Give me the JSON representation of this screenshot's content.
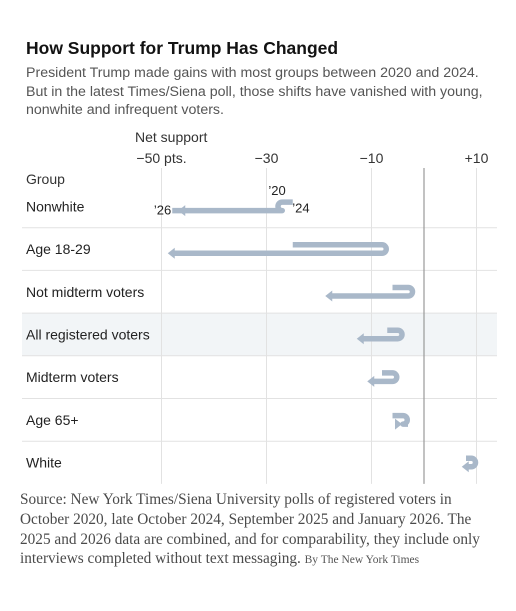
{
  "title": "How Support for Trump Has Changed",
  "subtitle": "President Trump made gains with most groups between 2020 and 2024. But in the latest Times/Siena poll, those shifts have vanished with young, nonwhite and infrequent voters.",
  "source": "Source: New York Times/Siena University polls of registered voters in October 2020, late October 2024, September 2025 and January 2026. The 2025 and 2026 data are combined, and for comparability, they include only interviews completed without text messaging.",
  "byline": "By The New York Times",
  "colors": {
    "arrow": "#a9b8c9",
    "highlight_row": "#f2f5f7",
    "grid": "#e2e2e2",
    "zero_line": "#999999"
  },
  "chart_data": {
    "type": "arrow",
    "xlabel": "Net support",
    "xlim": [
      -57,
      14
    ],
    "x_ticks": [
      -50,
      -30,
      -10,
      10
    ],
    "x_tick_labels": [
      "−50 pts.",
      "−30",
      "−10",
      "+10"
    ],
    "row_header": "Group",
    "series_labels": [
      "’20",
      "’24",
      "’26"
    ],
    "highlighted_group": "All registered voters",
    "rows": [
      {
        "group": "Nonwhite",
        "y2020": -25,
        "y2024": -27,
        "y2026": -47
      },
      {
        "group": "Age 18-29",
        "y2020": -25,
        "y2024": -8,
        "y2026": -49
      },
      {
        "group": "Not midterm voters",
        "y2020": -6,
        "y2024": -3,
        "y2026": -19
      },
      {
        "group": "All registered voters",
        "y2020": -7,
        "y2024": -5,
        "y2026": -13
      },
      {
        "group": "Midterm voters",
        "y2020": -8,
        "y2024": -6,
        "y2026": -11
      },
      {
        "group": "Age 65+",
        "y2020": -6,
        "y2024": -4,
        "y2026": -4
      },
      {
        "group": "White",
        "y2020": 8,
        "y2024": 9,
        "y2026": 7
      }
    ]
  }
}
